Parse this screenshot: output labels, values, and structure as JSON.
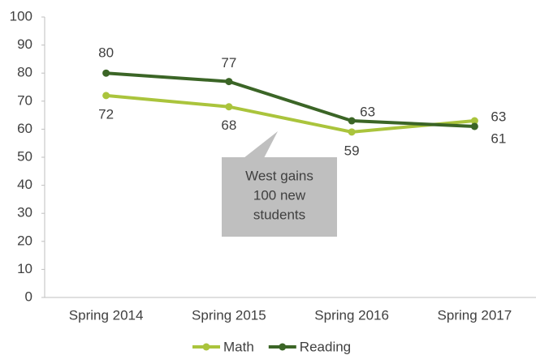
{
  "chart_data": {
    "type": "line",
    "categories": [
      "Spring 2014",
      "Spring 2015",
      "Spring 2016",
      "Spring 2017"
    ],
    "series": [
      {
        "name": "Math",
        "color": "#aac43c",
        "values": [
          72,
          68,
          59,
          63
        ]
      },
      {
        "name": "Reading",
        "color": "#3b6526",
        "values": [
          80,
          77,
          63,
          61
        ]
      }
    ],
    "ylim": [
      0,
      100
    ],
    "yticks": [
      0,
      10,
      20,
      30,
      40,
      50,
      60,
      70,
      80,
      90,
      100
    ],
    "annotation": [
      "West gains",
      "100 new",
      "students"
    ],
    "legend": "bottom"
  }
}
